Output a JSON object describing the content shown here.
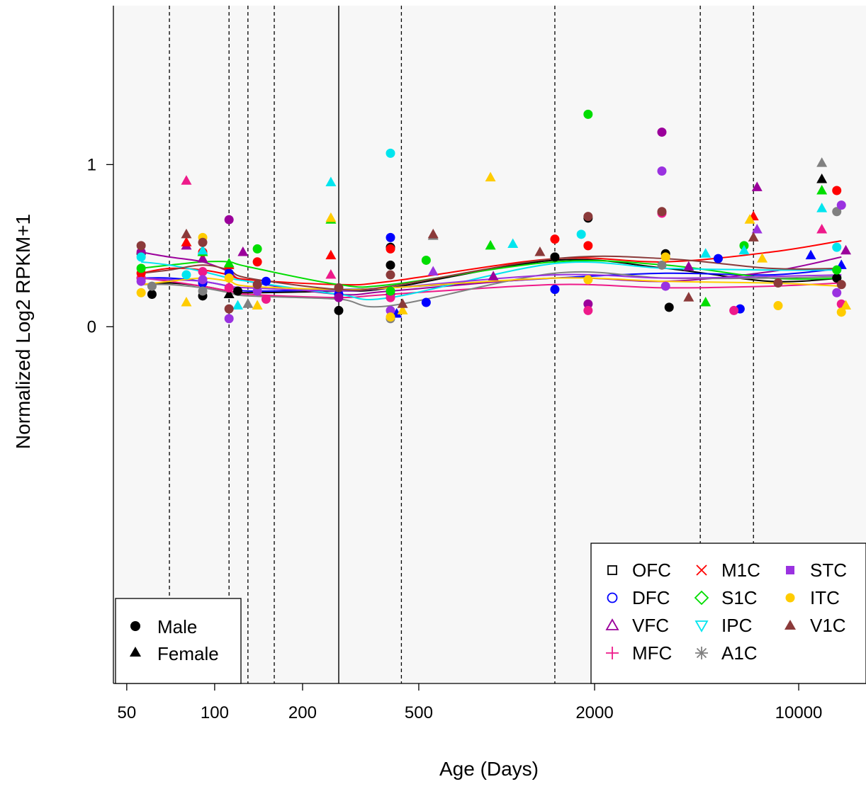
{
  "chart_data": {
    "type": "scatter",
    "title": "",
    "xlabel": "Age (Days)",
    "ylabel": "Normalized Log2 RPKM+1",
    "x_scale": "log",
    "x_ticks": [
      50,
      100,
      200,
      500,
      2000,
      10000
    ],
    "x_tick_labels": [
      "50",
      "100",
      "200",
      "500",
      "2000",
      "10000"
    ],
    "y_ticks": [
      0,
      1
    ],
    "y_tick_labels": [
      "0",
      "1"
    ],
    "xlim": [
      45,
      17000
    ],
    "ylim": [
      -2.2,
      1.98
    ],
    "plot_background": "#f7f7f7",
    "grid": false,
    "vertical_lines": [
      {
        "x": 70,
        "style": "dashed"
      },
      {
        "x": 112,
        "style": "dashed"
      },
      {
        "x": 130,
        "style": "dashed"
      },
      {
        "x": 160,
        "style": "dashed"
      },
      {
        "x": 266,
        "style": "solid"
      },
      {
        "x": 436,
        "style": "dashed"
      },
      {
        "x": 1462,
        "style": "dashed"
      },
      {
        "x": 4602,
        "style": "dashed"
      },
      {
        "x": 7000,
        "style": "dashed"
      }
    ],
    "sex_legend": {
      "position": "bottom-left",
      "entries": [
        {
          "label": "Male",
          "shape": "circle"
        },
        {
          "label": "Female",
          "shape": "triangle"
        }
      ]
    },
    "region_legend": {
      "position": "bottom-right",
      "entries": [
        {
          "label": "OFC",
          "color": "#000000",
          "symbol": "square-open"
        },
        {
          "label": "DFC",
          "color": "#0000ff",
          "symbol": "circle-open"
        },
        {
          "label": "VFC",
          "color": "#9b009b",
          "symbol": "triangle-open"
        },
        {
          "label": "MFC",
          "color": "#ee1a8a",
          "symbol": "plus"
        },
        {
          "label": "M1C",
          "color": "#ff0000",
          "symbol": "cross"
        },
        {
          "label": "S1C",
          "color": "#00dd00",
          "symbol": "diamond-open"
        },
        {
          "label": "IPC",
          "color": "#00e5ee",
          "symbol": "triangle-down-open"
        },
        {
          "label": "A1C",
          "color": "#808080",
          "symbol": "asterisk"
        },
        {
          "label": "STC",
          "color": "#9a32e0",
          "symbol": "square-filled"
        },
        {
          "label": "ITC",
          "color": "#ffcc00",
          "symbol": "circle-filled"
        },
        {
          "label": "V1C",
          "color": "#8b3a3a",
          "symbol": "triangle-filled"
        }
      ]
    },
    "series": [
      {
        "region": "OFC",
        "color": "#000000",
        "x": [
          56,
          70,
          91,
          112,
          130,
          266,
          400,
          1462,
          3500,
          8000,
          14000
        ],
        "y": [
          0.26,
          0.27,
          0.25,
          0.22,
          0.21,
          0.22,
          0.24,
          0.41,
          0.36,
          0.28,
          0.3
        ],
        "points": [
          [
            56,
            0.45,
            "m"
          ],
          [
            61,
            0.2,
            "m"
          ],
          [
            91,
            0.19,
            "m"
          ],
          [
            112,
            0.2,
            "f"
          ],
          [
            120,
            0.22,
            "m"
          ],
          [
            266,
            0.1,
            "m"
          ],
          [
            400,
            0.49,
            "m"
          ],
          [
            400,
            0.38,
            "m"
          ],
          [
            1462,
            0.43,
            "m"
          ],
          [
            1900,
            0.67,
            "m"
          ],
          [
            3500,
            0.45,
            "m"
          ],
          [
            3600,
            0.12,
            "m"
          ],
          [
            12000,
            0.91,
            "f"
          ],
          [
            13500,
            0.3,
            "m"
          ]
        ]
      },
      {
        "region": "DFC",
        "color": "#0000ff",
        "x": [
          56,
          70,
          91,
          112,
          130,
          266,
          400,
          1462,
          3500,
          8000,
          14000
        ],
        "y": [
          0.3,
          0.3,
          0.28,
          0.25,
          0.22,
          0.23,
          0.24,
          0.3,
          0.33,
          0.32,
          0.36
        ],
        "points": [
          [
            56,
            0.3,
            "m"
          ],
          [
            91,
            0.27,
            "m"
          ],
          [
            112,
            0.33,
            "m"
          ],
          [
            150,
            0.28,
            "m"
          ],
          [
            266,
            0.2,
            "m"
          ],
          [
            400,
            0.55,
            "m"
          ],
          [
            420,
            0.08,
            "f"
          ],
          [
            530,
            0.15,
            "m"
          ],
          [
            1462,
            0.23,
            "m"
          ],
          [
            5300,
            0.42,
            "m"
          ],
          [
            6300,
            0.11,
            "m"
          ],
          [
            11000,
            0.44,
            "f"
          ],
          [
            14000,
            0.38,
            "f"
          ]
        ]
      },
      {
        "region": "VFC",
        "color": "#9b009b",
        "x": [
          56,
          70,
          91,
          112,
          130,
          266,
          400,
          1462,
          3500,
          8000,
          14000
        ],
        "y": [
          0.46,
          0.43,
          0.4,
          0.34,
          0.28,
          0.2,
          0.22,
          0.3,
          0.28,
          0.34,
          0.43
        ],
        "points": [
          [
            56,
            0.46,
            "m"
          ],
          [
            80,
            0.5,
            "f"
          ],
          [
            91,
            0.42,
            "f"
          ],
          [
            112,
            0.66,
            "m"
          ],
          [
            125,
            0.46,
            "f"
          ],
          [
            266,
            0.18,
            "m"
          ],
          [
            400,
            0.2,
            "m"
          ],
          [
            900,
            0.31,
            "f"
          ],
          [
            1900,
            0.14,
            "m"
          ],
          [
            3400,
            1.2,
            "m"
          ],
          [
            4200,
            0.37,
            "f"
          ],
          [
            7200,
            0.86,
            "f"
          ],
          [
            14500,
            0.47,
            "f"
          ]
        ]
      },
      {
        "region": "MFC",
        "color": "#ee1a8a",
        "x": [
          56,
          70,
          91,
          112,
          130,
          266,
          400,
          1462,
          3500,
          8000,
          14000
        ],
        "y": [
          0.3,
          0.28,
          0.25,
          0.22,
          0.2,
          0.18,
          0.2,
          0.26,
          0.24,
          0.25,
          0.27
        ],
        "points": [
          [
            56,
            0.3,
            "m"
          ],
          [
            80,
            0.9,
            "f"
          ],
          [
            91,
            0.34,
            "m"
          ],
          [
            112,
            0.24,
            "m"
          ],
          [
            150,
            0.17,
            "m"
          ],
          [
            250,
            0.32,
            "f"
          ],
          [
            400,
            0.18,
            "m"
          ],
          [
            1900,
            0.1,
            "m"
          ],
          [
            3400,
            0.7,
            "m"
          ],
          [
            6000,
            0.1,
            "m"
          ],
          [
            12000,
            0.6,
            "f"
          ],
          [
            14000,
            0.14,
            "m"
          ]
        ]
      },
      {
        "region": "M1C",
        "color": "#ff0000",
        "x": [
          56,
          70,
          91,
          112,
          130,
          266,
          400,
          1462,
          3500,
          8000,
          14000
        ],
        "y": [
          0.33,
          0.36,
          0.35,
          0.32,
          0.29,
          0.26,
          0.28,
          0.42,
          0.4,
          0.46,
          0.53
        ],
        "points": [
          [
            56,
            0.33,
            "m"
          ],
          [
            80,
            0.52,
            "f"
          ],
          [
            91,
            0.46,
            "m"
          ],
          [
            112,
            0.38,
            "f"
          ],
          [
            140,
            0.4,
            "m"
          ],
          [
            250,
            0.44,
            "f"
          ],
          [
            400,
            0.48,
            "m"
          ],
          [
            1462,
            0.54,
            "m"
          ],
          [
            1900,
            0.5,
            "m"
          ],
          [
            7000,
            0.68,
            "f"
          ],
          [
            13500,
            0.84,
            "m"
          ]
        ]
      },
      {
        "region": "S1C",
        "color": "#00dd00",
        "x": [
          56,
          70,
          91,
          112,
          130,
          266,
          400,
          1462,
          3500,
          8000,
          14000
        ],
        "y": [
          0.36,
          0.38,
          0.4,
          0.4,
          0.37,
          0.26,
          0.26,
          0.4,
          0.38,
          0.3,
          0.3
        ],
        "points": [
          [
            56,
            0.36,
            "m"
          ],
          [
            91,
            0.46,
            "f"
          ],
          [
            112,
            0.39,
            "f"
          ],
          [
            140,
            0.48,
            "m"
          ],
          [
            250,
            0.66,
            "f"
          ],
          [
            400,
            0.22,
            "m"
          ],
          [
            530,
            0.41,
            "m"
          ],
          [
            880,
            0.5,
            "f"
          ],
          [
            1900,
            1.31,
            "m"
          ],
          [
            4800,
            0.15,
            "f"
          ],
          [
            6500,
            0.5,
            "m"
          ],
          [
            12000,
            0.84,
            "f"
          ],
          [
            13500,
            0.35,
            "m"
          ]
        ]
      },
      {
        "region": "IPC",
        "color": "#00e5ee",
        "x": [
          56,
          70,
          91,
          112,
          130,
          266,
          400,
          1462,
          3500,
          8000,
          14000
        ],
        "y": [
          0.4,
          0.38,
          0.34,
          0.3,
          0.28,
          0.2,
          0.18,
          0.39,
          0.36,
          0.35,
          0.35
        ],
        "points": [
          [
            56,
            0.43,
            "m"
          ],
          [
            80,
            0.32,
            "m"
          ],
          [
            91,
            0.47,
            "f"
          ],
          [
            120,
            0.13,
            "f"
          ],
          [
            250,
            0.89,
            "f"
          ],
          [
            400,
            1.07,
            "m"
          ],
          [
            1050,
            0.51,
            "f"
          ],
          [
            1800,
            0.57,
            "m"
          ],
          [
            4800,
            0.45,
            "f"
          ],
          [
            6500,
            0.47,
            "f"
          ],
          [
            12000,
            0.73,
            "f"
          ],
          [
            13500,
            0.49,
            "m"
          ]
        ]
      },
      {
        "region": "A1C",
        "color": "#808080",
        "x": [
          56,
          70,
          91,
          112,
          130,
          266,
          400,
          1462,
          3500,
          8000,
          14000
        ],
        "y": [
          0.26,
          0.26,
          0.24,
          0.21,
          0.19,
          0.17,
          0.13,
          0.33,
          0.3,
          0.3,
          0.31
        ],
        "points": [
          [
            61,
            0.25,
            "m"
          ],
          [
            91,
            0.22,
            "m"
          ],
          [
            130,
            0.14,
            "f"
          ],
          [
            400,
            0.05,
            "m"
          ],
          [
            560,
            0.56,
            "f"
          ],
          [
            3400,
            0.38,
            "m"
          ],
          [
            12000,
            1.01,
            "f"
          ],
          [
            13500,
            0.71,
            "m"
          ]
        ]
      },
      {
        "region": "STC",
        "color": "#9a32e0",
        "x": [
          56,
          70,
          91,
          112,
          130,
          266,
          400,
          1462,
          3500,
          8000,
          14000
        ],
        "y": [
          0.3,
          0.29,
          0.28,
          0.25,
          0.24,
          0.22,
          0.24,
          0.32,
          0.3,
          0.31,
          0.32
        ],
        "points": [
          [
            56,
            0.28,
            "m"
          ],
          [
            91,
            0.29,
            "m"
          ],
          [
            112,
            0.05,
            "m"
          ],
          [
            140,
            0.22,
            "m"
          ],
          [
            400,
            0.1,
            "m"
          ],
          [
            560,
            0.34,
            "f"
          ],
          [
            3400,
            0.96,
            "m"
          ],
          [
            3500,
            0.25,
            "m"
          ],
          [
            7200,
            0.6,
            "f"
          ],
          [
            13500,
            0.21,
            "m"
          ],
          [
            14000,
            0.75,
            "m"
          ]
        ]
      },
      {
        "region": "ITC",
        "color": "#ffcc00",
        "x": [
          56,
          70,
          91,
          112,
          130,
          266,
          400,
          1462,
          3500,
          8000,
          14000
        ],
        "y": [
          0.26,
          0.28,
          0.3,
          0.28,
          0.25,
          0.23,
          0.24,
          0.3,
          0.28,
          0.27,
          0.25
        ],
        "points": [
          [
            56,
            0.21,
            "m"
          ],
          [
            80,
            0.15,
            "f"
          ],
          [
            91,
            0.55,
            "m"
          ],
          [
            112,
            0.3,
            "m"
          ],
          [
            140,
            0.13,
            "f"
          ],
          [
            250,
            0.67,
            "f"
          ],
          [
            400,
            0.06,
            "m"
          ],
          [
            440,
            0.1,
            "f"
          ],
          [
            880,
            0.92,
            "f"
          ],
          [
            1900,
            0.29,
            "m"
          ],
          [
            3500,
            0.43,
            "m"
          ],
          [
            6800,
            0.66,
            "f"
          ],
          [
            7500,
            0.42,
            "f"
          ],
          [
            8500,
            0.13,
            "m"
          ],
          [
            14000,
            0.09,
            "m"
          ],
          [
            14500,
            0.13,
            "f"
          ]
        ]
      },
      {
        "region": "V1C",
        "color": "#8b3a3a",
        "x": [
          56,
          70,
          91,
          112,
          130,
          266,
          400,
          1462,
          3500,
          8000,
          14000
        ],
        "y": [
          0.33,
          0.35,
          0.38,
          0.35,
          0.3,
          0.23,
          0.25,
          0.42,
          0.42,
          0.36,
          0.36
        ],
        "points": [
          [
            56,
            0.5,
            "m"
          ],
          [
            80,
            0.57,
            "f"
          ],
          [
            91,
            0.52,
            "m"
          ],
          [
            112,
            0.11,
            "m"
          ],
          [
            140,
            0.26,
            "m"
          ],
          [
            266,
            0.24,
            "m"
          ],
          [
            400,
            0.32,
            "m"
          ],
          [
            440,
            0.14,
            "f"
          ],
          [
            560,
            0.57,
            "f"
          ],
          [
            1300,
            0.46,
            "f"
          ],
          [
            1900,
            0.68,
            "m"
          ],
          [
            3400,
            0.71,
            "m"
          ],
          [
            4200,
            0.18,
            "f"
          ],
          [
            7000,
            0.55,
            "f"
          ],
          [
            8500,
            0.27,
            "m"
          ],
          [
            14000,
            0.26,
            "m"
          ]
        ]
      }
    ]
  }
}
